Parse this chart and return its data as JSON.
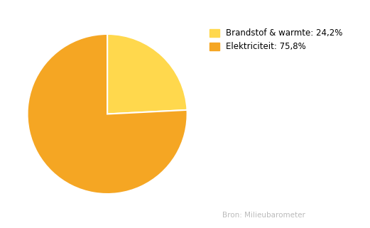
{
  "slices": [
    24.2,
    75.8
  ],
  "colors": [
    "#FFD84D",
    "#F5A623"
  ],
  "labels": [
    "Brandstof & warmte: 24,2%",
    "Elektriciteit: 75,8%"
  ],
  "startangle": 90,
  "wedge_edge_color": "white",
  "wedge_linewidth": 1.5,
  "background_color": "#ffffff",
  "legend_fontsize": 8.5,
  "source_text": "Bron: Milieubarometer",
  "source_fontsize": 7.5,
  "source_color": "#bbbbbb"
}
